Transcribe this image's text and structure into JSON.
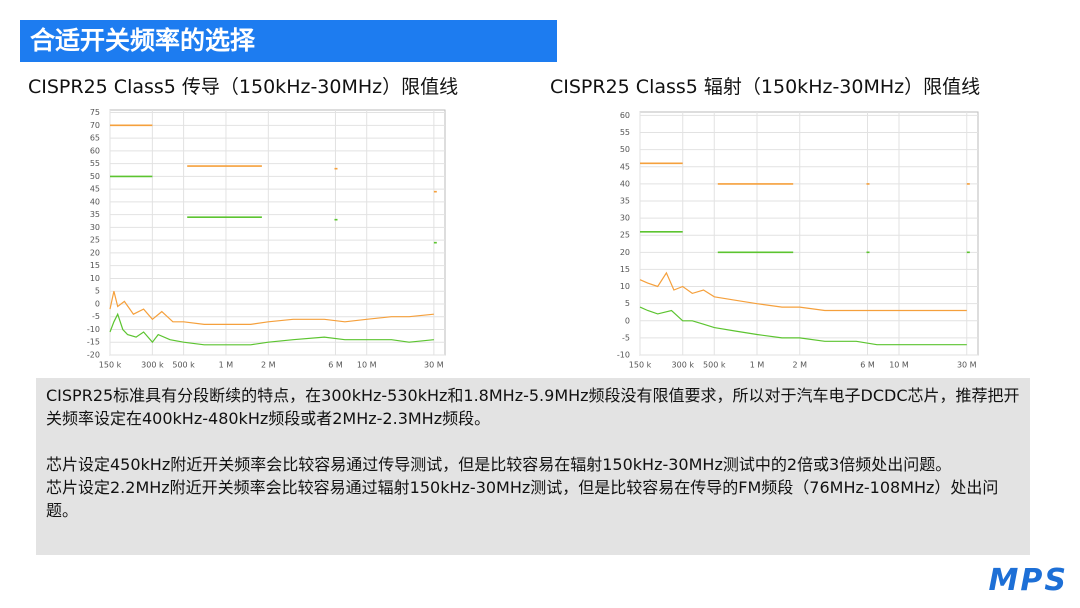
{
  "title": "合适开关频率的选择",
  "chart_data": [
    {
      "type": "line",
      "title": "CISPR25 Class5 传导（150kHz-30MHz）限值线",
      "log_x": true,
      "grid": true,
      "xlim": [
        150000,
        36000000
      ],
      "ylim": [
        -20,
        76
      ],
      "xticks": [
        {
          "value": 150000,
          "label": "150 k"
        },
        {
          "value": 300000,
          "label": "300 k"
        },
        {
          "value": 500000,
          "label": "500 k"
        },
        {
          "value": 1000000,
          "label": "1 M"
        },
        {
          "value": 2000000,
          "label": "2 M"
        },
        {
          "value": 6000000,
          "label": "6 M"
        },
        {
          "value": 10000000,
          "label": "10 M"
        },
        {
          "value": 30000000,
          "label": "30 M"
        }
      ],
      "yticks": [
        75,
        70,
        65,
        60,
        55,
        50,
        45,
        40,
        35,
        30,
        25,
        20,
        15,
        10,
        5,
        0,
        -5,
        -10,
        -15,
        -20
      ],
      "series": [
        {
          "color": "#f5a03c",
          "x": [
            150000,
            300000,
            530000,
            530000,
            1800000,
            5900000,
            5900000,
            6200000,
            30000000,
            30000000,
            31500000
          ],
          "values": [
            70,
            70,
            null,
            54,
            54,
            null,
            53,
            53,
            null,
            44,
            44
          ]
        },
        {
          "color": "#5cc430",
          "x": [
            150000,
            300000,
            530000,
            530000,
            1800000,
            5900000,
            5900000,
            6200000,
            30000000,
            30000000,
            31500000
          ],
          "values": [
            50,
            50,
            null,
            34,
            34,
            null,
            33,
            33,
            null,
            24,
            24
          ]
        },
        {
          "color": "#f5a03c",
          "x": [
            150000,
            160000,
            170000,
            190000,
            220000,
            260000,
            300000,
            350000,
            420000,
            500000,
            700000,
            1000000,
            1500000,
            2000000,
            3000000,
            5000000,
            7000000,
            10000000,
            15000000,
            20000000,
            30000000
          ],
          "values": [
            -2,
            5,
            -1,
            1,
            -4,
            -2,
            -6,
            -3,
            -7,
            -7,
            -8,
            -8,
            -8,
            -7,
            -6,
            -6,
            -7,
            -6,
            -5,
            -5,
            -4
          ]
        },
        {
          "color": "#5cc430",
          "x": [
            150000,
            160000,
            170000,
            185000,
            200000,
            230000,
            260000,
            300000,
            330000,
            400000,
            500000,
            700000,
            1000000,
            1500000,
            2000000,
            3000000,
            5000000,
            7000000,
            10000000,
            15000000,
            20000000,
            30000000
          ],
          "values": [
            -11,
            -7,
            -4,
            -10,
            -12,
            -13,
            -11,
            -15,
            -12,
            -14,
            -15,
            -16,
            -16,
            -16,
            -15,
            -14,
            -13,
            -14,
            -14,
            -14,
            -15,
            -14
          ]
        }
      ]
    },
    {
      "type": "line",
      "title": "CISPR25 Class5 辐射（150kHz-30MHz）限值线",
      "log_x": true,
      "grid": true,
      "xlim": [
        150000,
        36000000
      ],
      "ylim": [
        -10,
        61
      ],
      "xticks": [
        {
          "value": 150000,
          "label": "150 k"
        },
        {
          "value": 300000,
          "label": "300 k"
        },
        {
          "value": 500000,
          "label": "500 k"
        },
        {
          "value": 1000000,
          "label": "1 M"
        },
        {
          "value": 2000000,
          "label": "2 M"
        },
        {
          "value": 6000000,
          "label": "6 M"
        },
        {
          "value": 10000000,
          "label": "10 M"
        },
        {
          "value": 30000000,
          "label": "30 M"
        }
      ],
      "yticks": [
        60,
        55,
        50,
        45,
        40,
        35,
        30,
        25,
        20,
        15,
        10,
        5,
        0,
        -5,
        -10
      ],
      "series": [
        {
          "color": "#f5a03c",
          "x": [
            150000,
            300000,
            530000,
            530000,
            1800000,
            5900000,
            5900000,
            6200000,
            30000000,
            30000000,
            31500000
          ],
          "values": [
            46,
            46,
            null,
            40,
            40,
            null,
            40,
            40,
            null,
            40,
            40
          ]
        },
        {
          "color": "#5cc430",
          "x": [
            150000,
            300000,
            530000,
            530000,
            1800000,
            5900000,
            5900000,
            6200000,
            30000000,
            30000000,
            31500000
          ],
          "values": [
            26,
            26,
            null,
            20,
            20,
            null,
            20,
            20,
            null,
            20,
            20
          ]
        },
        {
          "color": "#f5a03c",
          "x": [
            150000,
            170000,
            200000,
            230000,
            260000,
            300000,
            350000,
            420000,
            500000,
            700000,
            1000000,
            1500000,
            2000000,
            3000000,
            5000000,
            7000000,
            10000000,
            15000000,
            20000000,
            30000000
          ],
          "values": [
            12,
            11,
            10,
            14,
            9,
            10,
            8,
            9,
            7,
            6,
            5,
            4,
            4,
            3,
            3,
            3,
            3,
            3,
            3,
            3
          ]
        },
        {
          "color": "#5cc430",
          "x": [
            150000,
            170000,
            200000,
            250000,
            300000,
            350000,
            420000,
            500000,
            700000,
            1000000,
            1500000,
            2000000,
            3000000,
            5000000,
            7000000,
            10000000,
            15000000,
            20000000,
            30000000
          ],
          "values": [
            4,
            3,
            2,
            3,
            0,
            0,
            -1,
            -2,
            -3,
            -4,
            -5,
            -5,
            -6,
            -6,
            -7,
            -7,
            -7,
            -7,
            -7
          ]
        }
      ]
    }
  ],
  "notes": [
    "CISPR25标准具有分段断续的特点，在300kHz-530kHz和1.8MHz-5.9MHz频段没有限值要求，所以对于汽车电子DCDC芯片，推荐把开关频率设定在400kHz-480kHz频段或者2MHz-2.3MHz频段。",
    "芯片设定450kHz附近开关频率会比较容易通过传导测试，但是比较容易在辐射150kHz-30MHz测试中的2倍或3倍频处出问题。",
    "芯片设定2.2MHz附近开关频率会比较容易通过辐射150kHz-30MHz测试，但是比较容易在传导的FM频段（76MHz-108MHz）处出问题。"
  ],
  "logo": "MPS"
}
